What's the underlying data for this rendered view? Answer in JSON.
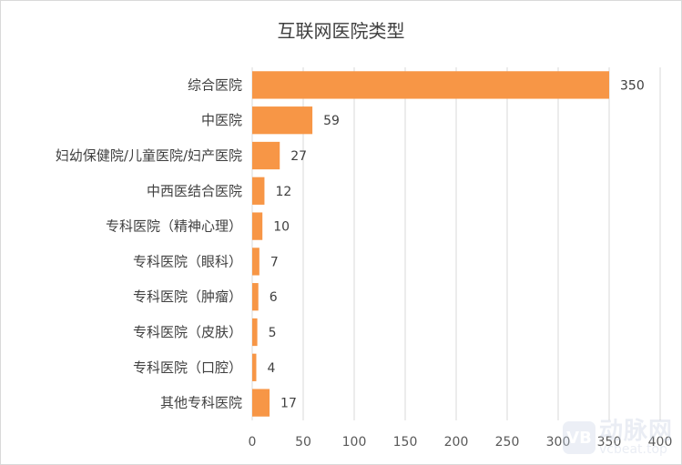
{
  "chart_data": {
    "type": "bar",
    "orientation": "horizontal",
    "title": "互联网医院类型",
    "categories": [
      "综合医院",
      "中医院",
      "妇幼保健院/儿童医院/妇产医院",
      "中西医结合医院",
      "专科医院（精神心理）",
      "专科医院（眼科）",
      "专科医院（肿瘤）",
      "专科医院（皮肤）",
      "专科医院（口腔）",
      "其他专科医院"
    ],
    "values": [
      350,
      59,
      27,
      12,
      10,
      7,
      6,
      5,
      4,
      17
    ],
    "xlim": [
      0,
      400
    ],
    "xticks": [
      0,
      50,
      100,
      150,
      200,
      250,
      300,
      350,
      400
    ],
    "grid": true,
    "legend": "none",
    "bar_color": "#F79646",
    "grid_color": "#D9D9D9"
  },
  "watermark": {
    "logo_text": "VB",
    "name": "动脉网",
    "url": "vcbeat.top"
  }
}
